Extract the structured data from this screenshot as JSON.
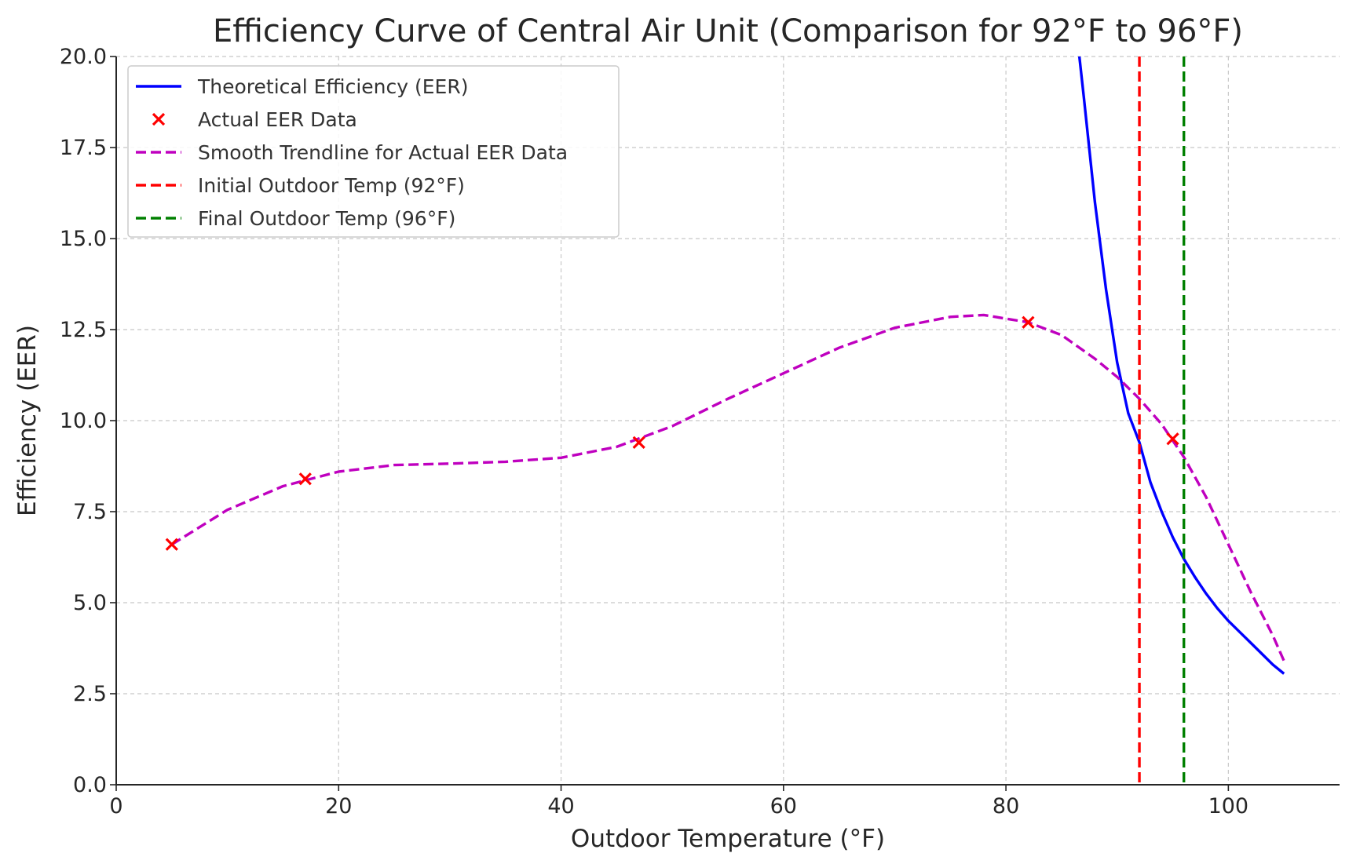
{
  "chart_data": {
    "type": "line",
    "title": "Efficiency Curve of Central Air Unit (Comparison for 92°F to 96°F)",
    "xlabel": "Outdoor Temperature (°F)",
    "ylabel": "Efficiency (EER)",
    "xlim": [
      0,
      110
    ],
    "ylim": [
      0,
      20
    ],
    "xticks": [
      0,
      20,
      40,
      60,
      80,
      100
    ],
    "yticks": [
      0,
      2.5,
      5,
      7.5,
      10,
      12.5,
      15,
      17.5,
      20
    ],
    "xtick_labels": [
      "0",
      "20",
      "40",
      "60",
      "80",
      "100"
    ],
    "ytick_labels": [
      "0.0",
      "2.5",
      "5.0",
      "7.5",
      "10.0",
      "12.5",
      "15.0",
      "17.5",
      "20.0"
    ],
    "grid": true,
    "legend_position": "top-left",
    "series": [
      {
        "name": "Theoretical Efficiency (EER)",
        "kind": "line",
        "color": "#0000ff",
        "style": "solid",
        "x": [
          86.6,
          87,
          88,
          89,
          90,
          91,
          92,
          93,
          94,
          95,
          96,
          97,
          98,
          99,
          100,
          101,
          102,
          103,
          104,
          105
        ],
        "y": [
          20.0,
          18.9,
          16.0,
          13.6,
          11.6,
          10.2,
          9.4,
          8.3,
          7.5,
          6.8,
          6.2,
          5.7,
          5.25,
          4.85,
          4.5,
          4.2,
          3.9,
          3.6,
          3.3,
          3.05
        ]
      },
      {
        "name": "Actual EER Data",
        "kind": "scatter",
        "color": "#ff0000",
        "marker": "x",
        "x": [
          5,
          17,
          47,
          82,
          95
        ],
        "y": [
          6.6,
          8.4,
          9.4,
          12.7,
          9.5
        ]
      },
      {
        "name": "Smooth Trendline for Actual EER Data",
        "kind": "line",
        "color": "#bf00bf",
        "style": "dashed",
        "x": [
          5,
          10,
          15,
          20,
          25,
          30,
          35,
          40,
          45,
          50,
          55,
          60,
          65,
          70,
          75,
          78,
          82,
          85,
          88,
          90,
          92,
          94,
          96,
          98,
          100,
          102,
          104,
          105
        ],
        "y": [
          6.6,
          7.55,
          8.2,
          8.6,
          8.78,
          8.82,
          8.87,
          8.98,
          9.28,
          9.85,
          10.6,
          11.3,
          12.0,
          12.55,
          12.85,
          12.9,
          12.7,
          12.35,
          11.7,
          11.2,
          10.6,
          9.9,
          9.0,
          7.9,
          6.6,
          5.3,
          4.1,
          3.4
        ]
      },
      {
        "name": "Initial Outdoor Temp (92°F)",
        "kind": "vline",
        "color": "#ff0000",
        "style": "dashed",
        "x_value": 92
      },
      {
        "name": "Final Outdoor Temp (96°F)",
        "kind": "vline",
        "color": "#008000",
        "style": "dashed",
        "x_value": 96
      }
    ]
  }
}
